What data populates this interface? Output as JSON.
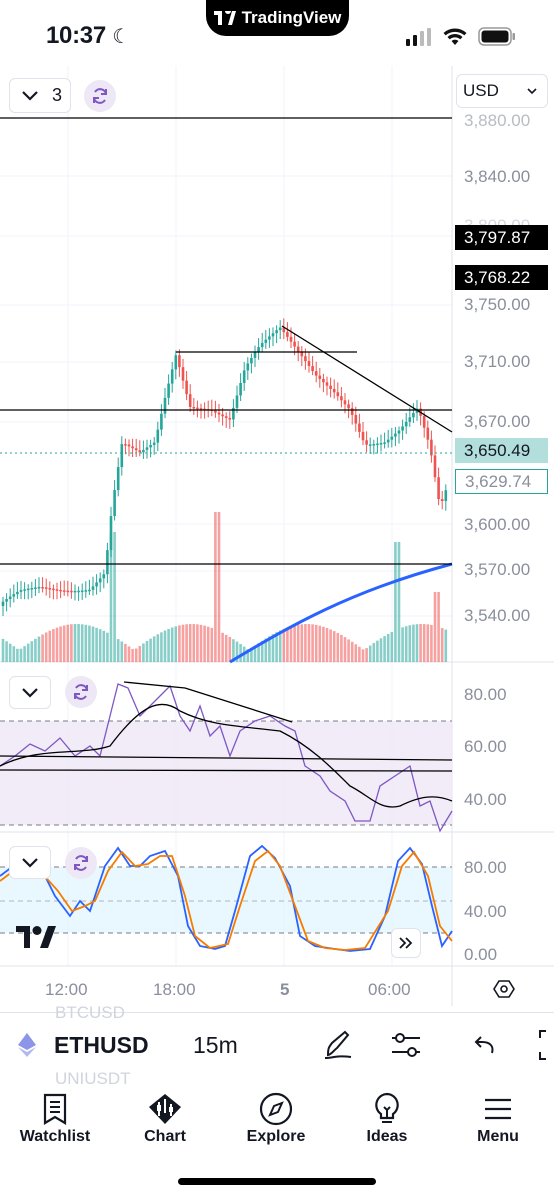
{
  "status_bar": {
    "time": "10:37",
    "island_label": "TradingView"
  },
  "chart_header": {
    "layout_count": "3",
    "currency": "USD"
  },
  "price_axis": {
    "labels": [
      "3,880.00",
      "3,840.00",
      "3,800.00",
      "3,750.00",
      "3,710.00",
      "3,670.00",
      "3,600.00",
      "3,570.00",
      "3,540.00"
    ],
    "tags": [
      {
        "label": "3,797.87",
        "style": "dark"
      },
      {
        "label": "3,768.22",
        "style": "dark"
      },
      {
        "label": "3,650.49",
        "style": "green"
      },
      {
        "label": "3,629.74",
        "style": "outline"
      }
    ]
  },
  "rsi_axis": {
    "labels": [
      "80.00",
      "60.00",
      "40.00"
    ]
  },
  "stoch_axis": {
    "labels": [
      "80.00",
      "40.00",
      "0.00"
    ]
  },
  "time_axis": {
    "labels": [
      "12:00",
      "18:00",
      "5",
      "06:00"
    ]
  },
  "toolbar": {
    "symbol": "ETHUSD",
    "interval": "15m",
    "ghost_above": "BTCUSD",
    "ghost_below": "UNIUSDT"
  },
  "tabs": [
    {
      "label": "Watchlist",
      "icon": "watchlist-icon"
    },
    {
      "label": "Chart",
      "icon": "chart-icon"
    },
    {
      "label": "Explore",
      "icon": "compass-icon"
    },
    {
      "label": "Ideas",
      "icon": "lightbulb-icon"
    },
    {
      "label": "Menu",
      "icon": "hamburger-icon"
    }
  ],
  "colors": {
    "up": "#26a69a",
    "down": "#ef5350",
    "ma": "#2962ff",
    "rsi": "#7e57c2",
    "stoch_k": "#2962ff",
    "stoch_d": "#f57c00"
  }
}
